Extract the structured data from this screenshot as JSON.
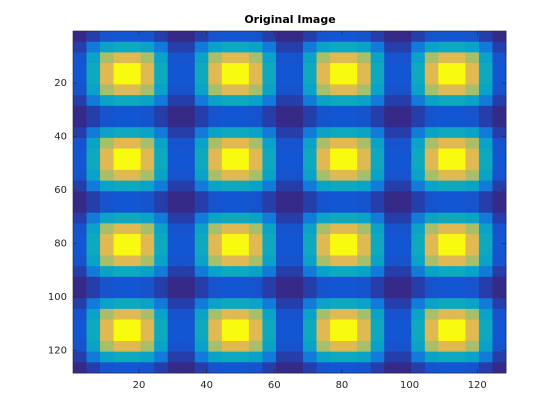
{
  "chart_data": {
    "type": "heatmap",
    "title": "Original Image",
    "x": [
      2.5,
      6.5,
      10.5,
      14.5,
      18.5,
      22.5,
      26.5,
      30.5,
      34.5,
      38.5,
      42.5,
      46.5,
      50.5,
      54.5,
      58.5,
      62.5,
      66.5,
      70.5,
      74.5,
      78.5,
      82.5,
      86.5,
      90.5,
      94.5,
      98.5,
      102.5,
      106.5,
      110.5,
      114.5,
      118.5,
      122.5,
      126.5
    ],
    "y": [
      2.5,
      6.5,
      10.5,
      14.5,
      18.5,
      22.5,
      26.5,
      30.5,
      34.5,
      38.5,
      42.5,
      46.5,
      50.5,
      54.5,
      58.5,
      62.5,
      66.5,
      70.5,
      74.5,
      78.5,
      82.5,
      86.5,
      90.5,
      94.5,
      98.5,
      102.5,
      106.5,
      110.5,
      114.5,
      118.5,
      122.5,
      126.5
    ],
    "values": [
      [
        0.02,
        0.08,
        0.14,
        0.15,
        0.15,
        0.14,
        0.08,
        0.02,
        0.02,
        0.08,
        0.14,
        0.15,
        0.15,
        0.14,
        0.08,
        0.02,
        0.02,
        0.08,
        0.14,
        0.15,
        0.15,
        0.14,
        0.08,
        0.02,
        0.02,
        0.08,
        0.14,
        0.15,
        0.15,
        0.14,
        0.08,
        0.02
      ],
      [
        0.08,
        0.3,
        0.5,
        0.55,
        0.55,
        0.5,
        0.3,
        0.08,
        0.08,
        0.3,
        0.5,
        0.55,
        0.55,
        0.5,
        0.3,
        0.08,
        0.08,
        0.3,
        0.5,
        0.55,
        0.55,
        0.5,
        0.3,
        0.08,
        0.08,
        0.3,
        0.5,
        0.55,
        0.55,
        0.5,
        0.3,
        0.08
      ],
      [
        0.14,
        0.5,
        0.81,
        0.9,
        0.9,
        0.81,
        0.5,
        0.14,
        0.14,
        0.5,
        0.81,
        0.9,
        0.9,
        0.81,
        0.5,
        0.14,
        0.14,
        0.5,
        0.81,
        0.9,
        0.9,
        0.81,
        0.5,
        0.14,
        0.14,
        0.5,
        0.81,
        0.9,
        0.9,
        0.81,
        0.5,
        0.14
      ],
      [
        0.15,
        0.55,
        0.9,
        1,
        1,
        0.9,
        0.55,
        0.15,
        0.15,
        0.55,
        0.9,
        1,
        1,
        0.9,
        0.55,
        0.15,
        0.15,
        0.55,
        0.9,
        1,
        1,
        0.9,
        0.55,
        0.15,
        0.15,
        0.55,
        0.9,
        1,
        1,
        0.9,
        0.55,
        0.15
      ],
      [
        0.15,
        0.55,
        0.9,
        1,
        1,
        0.9,
        0.55,
        0.15,
        0.15,
        0.55,
        0.9,
        1,
        1,
        0.9,
        0.55,
        0.15,
        0.15,
        0.55,
        0.9,
        1,
        1,
        0.9,
        0.55,
        0.15,
        0.15,
        0.55,
        0.9,
        1,
        1,
        0.9,
        0.55,
        0.15
      ],
      [
        0.14,
        0.5,
        0.81,
        0.9,
        0.9,
        0.81,
        0.5,
        0.14,
        0.14,
        0.5,
        0.81,
        0.9,
        0.9,
        0.81,
        0.5,
        0.14,
        0.14,
        0.5,
        0.81,
        0.9,
        0.9,
        0.81,
        0.5,
        0.14,
        0.14,
        0.5,
        0.81,
        0.9,
        0.9,
        0.81,
        0.5,
        0.14
      ],
      [
        0.08,
        0.3,
        0.5,
        0.55,
        0.55,
        0.5,
        0.3,
        0.08,
        0.08,
        0.3,
        0.5,
        0.55,
        0.55,
        0.5,
        0.3,
        0.08,
        0.08,
        0.3,
        0.5,
        0.55,
        0.55,
        0.5,
        0.3,
        0.08,
        0.08,
        0.3,
        0.5,
        0.55,
        0.55,
        0.5,
        0.3,
        0.08
      ],
      [
        0.02,
        0.08,
        0.14,
        0.15,
        0.15,
        0.14,
        0.08,
        0.02,
        0.02,
        0.08,
        0.14,
        0.15,
        0.15,
        0.14,
        0.08,
        0.02,
        0.02,
        0.08,
        0.14,
        0.15,
        0.15,
        0.14,
        0.08,
        0.02,
        0.02,
        0.08,
        0.14,
        0.15,
        0.15,
        0.14,
        0.08,
        0.02
      ],
      [
        0.02,
        0.08,
        0.14,
        0.15,
        0.15,
        0.14,
        0.08,
        0.02,
        0.02,
        0.08,
        0.14,
        0.15,
        0.15,
        0.14,
        0.08,
        0.02,
        0.02,
        0.08,
        0.14,
        0.15,
        0.15,
        0.14,
        0.08,
        0.02,
        0.02,
        0.08,
        0.14,
        0.15,
        0.15,
        0.14,
        0.08,
        0.02
      ],
      [
        0.08,
        0.3,
        0.5,
        0.55,
        0.55,
        0.5,
        0.3,
        0.08,
        0.08,
        0.3,
        0.5,
        0.55,
        0.55,
        0.5,
        0.3,
        0.08,
        0.08,
        0.3,
        0.5,
        0.55,
        0.55,
        0.5,
        0.3,
        0.08,
        0.08,
        0.3,
        0.5,
        0.55,
        0.55,
        0.5,
        0.3,
        0.08
      ],
      [
        0.14,
        0.5,
        0.81,
        0.9,
        0.9,
        0.81,
        0.5,
        0.14,
        0.14,
        0.5,
        0.81,
        0.9,
        0.9,
        0.81,
        0.5,
        0.14,
        0.14,
        0.5,
        0.81,
        0.9,
        0.9,
        0.81,
        0.5,
        0.14,
        0.14,
        0.5,
        0.81,
        0.9,
        0.9,
        0.81,
        0.5,
        0.14
      ],
      [
        0.15,
        0.55,
        0.9,
        1,
        1,
        0.9,
        0.55,
        0.15,
        0.15,
        0.55,
        0.9,
        1,
        1,
        0.9,
        0.55,
        0.15,
        0.15,
        0.55,
        0.9,
        1,
        1,
        0.9,
        0.55,
        0.15,
        0.15,
        0.55,
        0.9,
        1,
        1,
        0.9,
        0.55,
        0.15
      ],
      [
        0.15,
        0.55,
        0.9,
        1,
        1,
        0.9,
        0.55,
        0.15,
        0.15,
        0.55,
        0.9,
        1,
        1,
        0.9,
        0.55,
        0.15,
        0.15,
        0.55,
        0.9,
        1,
        1,
        0.9,
        0.55,
        0.15,
        0.15,
        0.55,
        0.9,
        1,
        1,
        0.9,
        0.55,
        0.15
      ],
      [
        0.14,
        0.5,
        0.81,
        0.9,
        0.9,
        0.81,
        0.5,
        0.14,
        0.14,
        0.5,
        0.81,
        0.9,
        0.9,
        0.81,
        0.5,
        0.14,
        0.14,
        0.5,
        0.81,
        0.9,
        0.9,
        0.81,
        0.5,
        0.14,
        0.14,
        0.5,
        0.81,
        0.9,
        0.9,
        0.81,
        0.5,
        0.14
      ],
      [
        0.08,
        0.3,
        0.5,
        0.55,
        0.55,
        0.5,
        0.3,
        0.08,
        0.08,
        0.3,
        0.5,
        0.55,
        0.55,
        0.5,
        0.3,
        0.08,
        0.08,
        0.3,
        0.5,
        0.55,
        0.55,
        0.5,
        0.3,
        0.08,
        0.08,
        0.3,
        0.5,
        0.55,
        0.55,
        0.5,
        0.3,
        0.08
      ],
      [
        0.02,
        0.08,
        0.14,
        0.15,
        0.15,
        0.14,
        0.08,
        0.02,
        0.02,
        0.08,
        0.14,
        0.15,
        0.15,
        0.14,
        0.08,
        0.02,
        0.02,
        0.08,
        0.14,
        0.15,
        0.15,
        0.14,
        0.08,
        0.02,
        0.02,
        0.08,
        0.14,
        0.15,
        0.15,
        0.14,
        0.08,
        0.02
      ],
      [
        0.02,
        0.08,
        0.14,
        0.15,
        0.15,
        0.14,
        0.08,
        0.02,
        0.02,
        0.08,
        0.14,
        0.15,
        0.15,
        0.14,
        0.08,
        0.02,
        0.02,
        0.08,
        0.14,
        0.15,
        0.15,
        0.14,
        0.08,
        0.02,
        0.02,
        0.08,
        0.14,
        0.15,
        0.15,
        0.14,
        0.08,
        0.02
      ],
      [
        0.08,
        0.3,
        0.5,
        0.55,
        0.55,
        0.5,
        0.3,
        0.08,
        0.08,
        0.3,
        0.5,
        0.55,
        0.55,
        0.5,
        0.3,
        0.08,
        0.08,
        0.3,
        0.5,
        0.55,
        0.55,
        0.5,
        0.3,
        0.08,
        0.08,
        0.3,
        0.5,
        0.55,
        0.55,
        0.5,
        0.3,
        0.08
      ],
      [
        0.14,
        0.5,
        0.81,
        0.9,
        0.9,
        0.81,
        0.5,
        0.14,
        0.14,
        0.5,
        0.81,
        0.9,
        0.9,
        0.81,
        0.5,
        0.14,
        0.14,
        0.5,
        0.81,
        0.9,
        0.9,
        0.81,
        0.5,
        0.14,
        0.14,
        0.5,
        0.81,
        0.9,
        0.9,
        0.81,
        0.5,
        0.14
      ],
      [
        0.15,
        0.55,
        0.9,
        1,
        1,
        0.9,
        0.55,
        0.15,
        0.15,
        0.55,
        0.9,
        1,
        1,
        0.9,
        0.55,
        0.15,
        0.15,
        0.55,
        0.9,
        1,
        1,
        0.9,
        0.55,
        0.15,
        0.15,
        0.55,
        0.9,
        1,
        1,
        0.9,
        0.55,
        0.15
      ],
      [
        0.15,
        0.55,
        0.9,
        1,
        1,
        0.9,
        0.55,
        0.15,
        0.15,
        0.55,
        0.9,
        1,
        1,
        0.9,
        0.55,
        0.15,
        0.15,
        0.55,
        0.9,
        1,
        1,
        0.9,
        0.55,
        0.15,
        0.15,
        0.55,
        0.9,
        1,
        1,
        0.9,
        0.55,
        0.15
      ],
      [
        0.14,
        0.5,
        0.81,
        0.9,
        0.9,
        0.81,
        0.5,
        0.14,
        0.14,
        0.5,
        0.81,
        0.9,
        0.9,
        0.81,
        0.5,
        0.14,
        0.14,
        0.5,
        0.81,
        0.9,
        0.9,
        0.81,
        0.5,
        0.14,
        0.14,
        0.5,
        0.81,
        0.9,
        0.9,
        0.81,
        0.5,
        0.14
      ],
      [
        0.08,
        0.3,
        0.5,
        0.55,
        0.55,
        0.5,
        0.3,
        0.08,
        0.08,
        0.3,
        0.5,
        0.55,
        0.55,
        0.5,
        0.3,
        0.08,
        0.08,
        0.3,
        0.5,
        0.55,
        0.55,
        0.5,
        0.3,
        0.08,
        0.08,
        0.3,
        0.5,
        0.55,
        0.55,
        0.5,
        0.3,
        0.08
      ],
      [
        0.02,
        0.08,
        0.14,
        0.15,
        0.15,
        0.14,
        0.08,
        0.02,
        0.02,
        0.08,
        0.14,
        0.15,
        0.15,
        0.14,
        0.08,
        0.02,
        0.02,
        0.08,
        0.14,
        0.15,
        0.15,
        0.14,
        0.08,
        0.02,
        0.02,
        0.08,
        0.14,
        0.15,
        0.15,
        0.14,
        0.08,
        0.02
      ],
      [
        0.02,
        0.08,
        0.14,
        0.15,
        0.15,
        0.14,
        0.08,
        0.02,
        0.02,
        0.08,
        0.14,
        0.15,
        0.15,
        0.14,
        0.08,
        0.02,
        0.02,
        0.08,
        0.14,
        0.15,
        0.15,
        0.14,
        0.08,
        0.02,
        0.02,
        0.08,
        0.14,
        0.15,
        0.15,
        0.14,
        0.08,
        0.02
      ],
      [
        0.08,
        0.3,
        0.5,
        0.55,
        0.55,
        0.5,
        0.3,
        0.08,
        0.08,
        0.3,
        0.5,
        0.55,
        0.55,
        0.5,
        0.3,
        0.08,
        0.08,
        0.3,
        0.5,
        0.55,
        0.55,
        0.5,
        0.3,
        0.08,
        0.08,
        0.3,
        0.5,
        0.55,
        0.55,
        0.5,
        0.3,
        0.08
      ],
      [
        0.14,
        0.5,
        0.81,
        0.9,
        0.9,
        0.81,
        0.5,
        0.14,
        0.14,
        0.5,
        0.81,
        0.9,
        0.9,
        0.81,
        0.5,
        0.14,
        0.14,
        0.5,
        0.81,
        0.9,
        0.9,
        0.81,
        0.5,
        0.14,
        0.14,
        0.5,
        0.81,
        0.9,
        0.9,
        0.81,
        0.5,
        0.14
      ],
      [
        0.15,
        0.55,
        0.9,
        1,
        1,
        0.9,
        0.55,
        0.15,
        0.15,
        0.55,
        0.9,
        1,
        1,
        0.9,
        0.55,
        0.15,
        0.15,
        0.55,
        0.9,
        1,
        1,
        0.9,
        0.55,
        0.15,
        0.15,
        0.55,
        0.9,
        1,
        1,
        0.9,
        0.55,
        0.15
      ],
      [
        0.15,
        0.55,
        0.9,
        1,
        1,
        0.9,
        0.55,
        0.15,
        0.15,
        0.55,
        0.9,
        1,
        1,
        0.9,
        0.55,
        0.15,
        0.15,
        0.55,
        0.9,
        1,
        1,
        0.9,
        0.55,
        0.15,
        0.15,
        0.55,
        0.9,
        1,
        1,
        0.9,
        0.55,
        0.15
      ],
      [
        0.14,
        0.5,
        0.81,
        0.9,
        0.9,
        0.81,
        0.5,
        0.14,
        0.14,
        0.5,
        0.81,
        0.9,
        0.9,
        0.81,
        0.5,
        0.14,
        0.14,
        0.5,
        0.81,
        0.9,
        0.9,
        0.81,
        0.5,
        0.14,
        0.14,
        0.5,
        0.81,
        0.9,
        0.9,
        0.81,
        0.5,
        0.14
      ],
      [
        0.08,
        0.3,
        0.5,
        0.55,
        0.55,
        0.5,
        0.3,
        0.08,
        0.08,
        0.3,
        0.5,
        0.55,
        0.55,
        0.5,
        0.3,
        0.08,
        0.08,
        0.3,
        0.5,
        0.55,
        0.55,
        0.5,
        0.3,
        0.08,
        0.08,
        0.3,
        0.5,
        0.55,
        0.55,
        0.5,
        0.3,
        0.08
      ],
      [
        0.02,
        0.08,
        0.14,
        0.15,
        0.15,
        0.14,
        0.08,
        0.02,
        0.02,
        0.08,
        0.14,
        0.15,
        0.15,
        0.14,
        0.08,
        0.02,
        0.02,
        0.08,
        0.14,
        0.15,
        0.15,
        0.14,
        0.08,
        0.02,
        0.02,
        0.08,
        0.14,
        0.15,
        0.15,
        0.14,
        0.08,
        0.02
      ]
    ],
    "colormap": "parula",
    "xlim": [
      0.5,
      128.5
    ],
    "ylim": [
      0.5,
      128.5
    ],
    "y_reversed": true,
    "xticks": [
      20,
      40,
      60,
      80,
      100,
      120
    ],
    "yticks": [
      20,
      40,
      60,
      80,
      100,
      120
    ]
  }
}
